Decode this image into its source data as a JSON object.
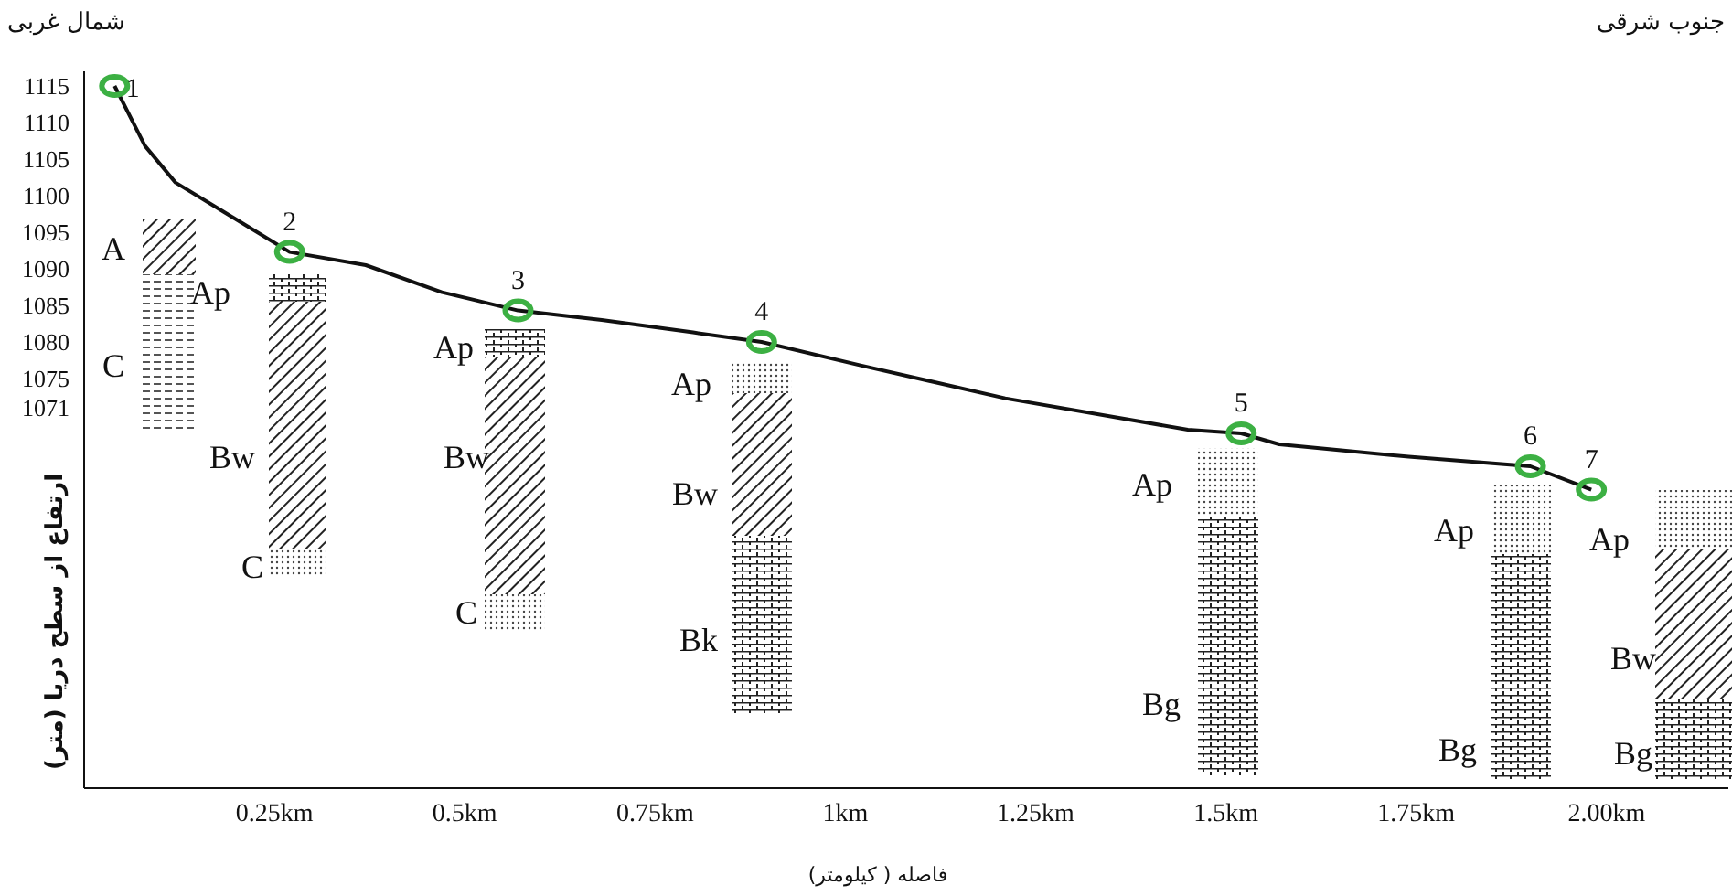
{
  "chart_data": {
    "type": "line",
    "xlabel": "فاصله ( کیلومتر)",
    "ylabel": "ارتفاع از سطح دریا (متر)",
    "xlim": [
      0,
      2.16
    ],
    "xticks": [
      {
        "value": 0.25,
        "label": "0.25km"
      },
      {
        "value": 0.5,
        "label": "0.5km"
      },
      {
        "value": 0.75,
        "label": "0.75km"
      },
      {
        "value": 1,
        "label": "1km"
      },
      {
        "value": 1.25,
        "label": "1.25km"
      },
      {
        "value": 1.5,
        "label": "1.5km"
      },
      {
        "value": 1.75,
        "label": "1.75km"
      },
      {
        "value": 2,
        "label": "2.00km"
      }
    ],
    "ylim": [
      1019,
      1117
    ],
    "yticks": [
      1071,
      1075,
      1080,
      1085,
      1090,
      1095,
      1100,
      1105,
      1110,
      1115
    ],
    "grid": false,
    "series": [
      {
        "type": "line",
        "color": "#111111",
        "marker": "none",
        "x": [
          0.04,
          0.08,
          0.12,
          0.18,
          0.27,
          0.37,
          0.47,
          0.57,
          0.68,
          0.8,
          0.89,
          1.02,
          1.21,
          1.45,
          1.52,
          1.57,
          1.67,
          1.74,
          1.9,
          1.98
        ],
        "values": [
          1115,
          1106.8,
          1101.8,
          1098,
          1092.3,
          1090.5,
          1086.8,
          1084.3,
          1083,
          1081.3,
          1080,
          1076.8,
          1072.3,
          1068,
          1067.5,
          1066,
          1065,
          1064.3,
          1063,
          1059.8
        ]
      },
      {
        "type": "scatter",
        "color": "#3cb043",
        "marker": "circle",
        "x": [
          0.04,
          0.27,
          0.57,
          0.89,
          1.52,
          1.9,
          1.98
        ],
        "values": [
          1115,
          1092.3,
          1084.3,
          1080,
          1067.5,
          1063,
          1059.8
        ]
      }
    ],
    "annotations": [
      "شمال غربی",
      "جنوب شرقی",
      {
        "text": "1",
        "x": 0.04,
        "y": 1115
      },
      {
        "text": "2",
        "x": 0.27,
        "y": 1092.3
      },
      {
        "text": "3",
        "x": 0.57,
        "y": 1084.3
      },
      {
        "text": "4",
        "x": 0.89,
        "y": 1080
      },
      {
        "text": "5",
        "x": 1.52,
        "y": 1067.5
      },
      {
        "text": "6",
        "x": 1.9,
        "y": 1063
      },
      {
        "text": "7",
        "x": 1.98,
        "y": 1059.8
      },
      "A",
      "C",
      "Ap",
      "Bw",
      "C",
      "Ap",
      "Bw",
      "C",
      "Ap",
      "Bw",
      "Bk",
      "Ap",
      "Bg",
      "Ap",
      "Bg",
      "Ap",
      "Bw",
      "Bg"
    ]
  }
}
